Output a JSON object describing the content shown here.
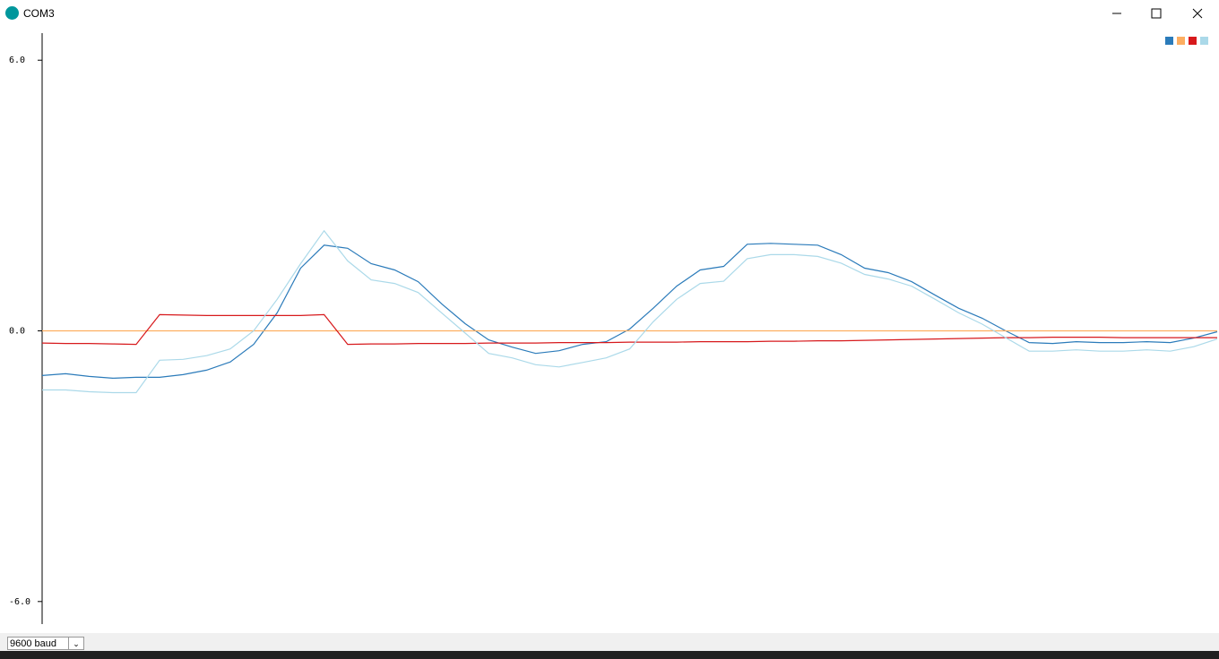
{
  "window": {
    "title": "COM3"
  },
  "chart_data": {
    "type": "line",
    "x": [
      0,
      1,
      2,
      3,
      4,
      5,
      6,
      7,
      8,
      9,
      10,
      11,
      12,
      13,
      14,
      15,
      16,
      17,
      18,
      19,
      20,
      21,
      22,
      23,
      24,
      25,
      26,
      27,
      28,
      29,
      30,
      31,
      32,
      33,
      34,
      35,
      36,
      37,
      38,
      39,
      40,
      41,
      42,
      43,
      44,
      45,
      46,
      47,
      48,
      49,
      50
    ],
    "xlim": [
      0,
      50
    ],
    "ylim": [
      -6.5,
      6.6
    ],
    "yticks": [
      {
        "value": 6,
        "label": "6.0"
      },
      {
        "value": 0,
        "label": "0.0"
      },
      {
        "value": -6,
        "label": "-6.0"
      }
    ],
    "legend": "top-right",
    "series": [
      {
        "color": "#2b7bba",
        "values": [
          -0.99,
          -0.95,
          -1.01,
          -1.05,
          -1.03,
          -1.03,
          -0.97,
          -0.87,
          -0.69,
          -0.3,
          0.4,
          1.39,
          1.9,
          1.83,
          1.49,
          1.35,
          1.09,
          0.6,
          0.16,
          -0.2,
          -0.36,
          -0.5,
          -0.44,
          -0.3,
          -0.24,
          0.04,
          0.5,
          0.99,
          1.35,
          1.43,
          1.92,
          1.94,
          1.92,
          1.9,
          1.69,
          1.39,
          1.29,
          1.09,
          0.79,
          0.5,
          0.28,
          0.0,
          -0.26,
          -0.28,
          -0.24,
          -0.26,
          -0.26,
          -0.24,
          -0.26,
          -0.16,
          -0.02
        ]
      },
      {
        "color": "#fdae61",
        "values": [
          0,
          0,
          0,
          0,
          0,
          0,
          0,
          0,
          0,
          0,
          0,
          0,
          0,
          0,
          0,
          0,
          0,
          0,
          0,
          0,
          0,
          0,
          0,
          0,
          0,
          0,
          0,
          0,
          0,
          0,
          0,
          0,
          0,
          0,
          0,
          0,
          0,
          0,
          0,
          0,
          0,
          0,
          0,
          0,
          0,
          0,
          0,
          0,
          0,
          0,
          0
        ]
      },
      {
        "color": "#d7191c",
        "values": [
          -0.27,
          -0.28,
          -0.28,
          -0.29,
          -0.3,
          0.36,
          0.35,
          0.34,
          0.34,
          0.34,
          0.34,
          0.34,
          0.36,
          -0.3,
          -0.29,
          -0.29,
          -0.28,
          -0.28,
          -0.28,
          -0.27,
          -0.27,
          -0.27,
          -0.26,
          -0.26,
          -0.26,
          -0.25,
          -0.25,
          -0.25,
          -0.24,
          -0.24,
          -0.24,
          -0.23,
          -0.23,
          -0.22,
          -0.22,
          -0.21,
          -0.2,
          -0.19,
          -0.18,
          -0.17,
          -0.16,
          -0.15,
          -0.15,
          -0.14,
          -0.14,
          -0.14,
          -0.15,
          -0.15,
          -0.15,
          -0.15,
          -0.15
        ]
      },
      {
        "color": "#abd9e9",
        "values": [
          -1.31,
          -1.31,
          -1.35,
          -1.37,
          -1.37,
          -0.65,
          -0.63,
          -0.55,
          -0.4,
          0.0,
          0.7,
          1.49,
          2.22,
          1.55,
          1.13,
          1.05,
          0.85,
          0.4,
          -0.05,
          -0.5,
          -0.6,
          -0.75,
          -0.8,
          -0.7,
          -0.6,
          -0.4,
          0.2,
          0.7,
          1.05,
          1.1,
          1.6,
          1.69,
          1.69,
          1.65,
          1.5,
          1.25,
          1.15,
          0.99,
          0.7,
          0.4,
          0.15,
          -0.15,
          -0.45,
          -0.45,
          -0.42,
          -0.45,
          -0.45,
          -0.42,
          -0.45,
          -0.35,
          -0.18
        ]
      }
    ]
  },
  "footer": {
    "baud": "9600 baud"
  }
}
